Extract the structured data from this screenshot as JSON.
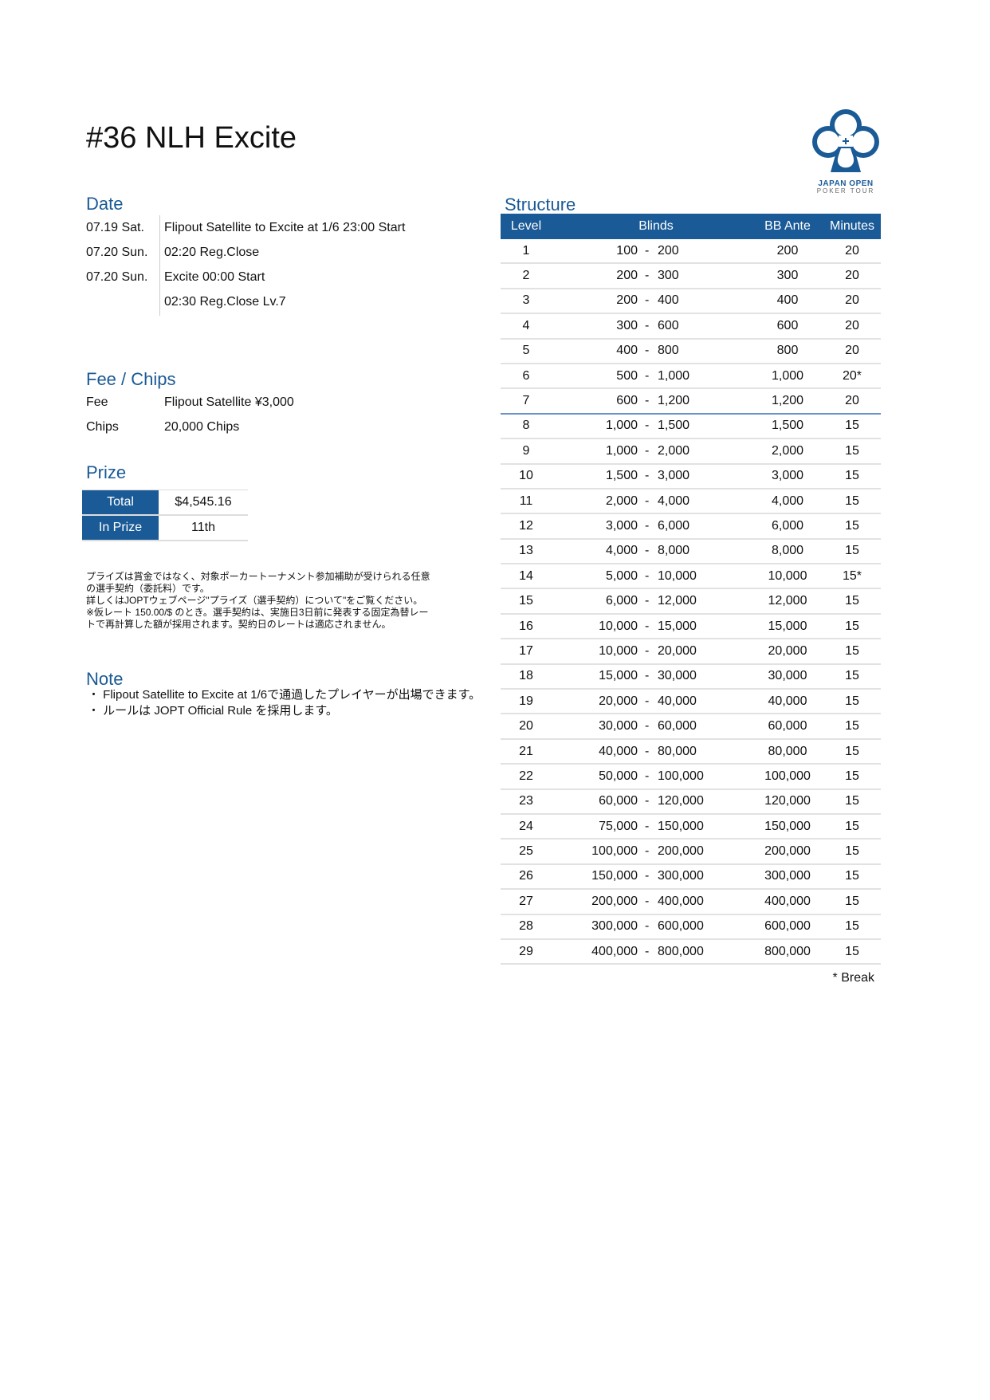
{
  "title": "#36 NLH Excite",
  "logo": {
    "line1": "JAPAN OPEN",
    "line2": "POKER TOUR",
    "color": "#1a5a96"
  },
  "date": {
    "heading": "Date",
    "rows": [
      {
        "date": "07.19 Sat.",
        "text": "Flipout Satellite to Excite at 1/6 23:00 Start"
      },
      {
        "date": "07.20 Sun.",
        "text": "02:20 Reg.Close"
      },
      {
        "date": "07.20 Sun.",
        "text": "Excite 00:00 Start"
      },
      {
        "date": "",
        "text": "02:30 Reg.Close Lv.7"
      }
    ]
  },
  "fee": {
    "heading": "Fee / Chips",
    "fee_label": "Fee",
    "fee_value": "Flipout Satellite ¥3,000",
    "chips_label": "Chips",
    "chips_value": "20,000 Chips"
  },
  "prize": {
    "heading": "Prize",
    "total_label": "Total",
    "total_value": "$4,545.16",
    "inprize_label": "In Prize",
    "inprize_value": "11th"
  },
  "disclaimer": [
    "プライズは賞金ではなく、対象ポーカートーナメント参加補助が受けられる任意",
    "の選手契約（委託料）です。",
    "詳しくはJOPTウェブページ\"プライズ（選手契約）について\"をご覧ください。",
    "※仮レート 150.00/$ のとき。選手契約は、実施日3日前に発表する固定為替レー",
    "トで再計算した額が採用されます。契約日のレートは適応されません。"
  ],
  "note": {
    "heading": "Note",
    "items": [
      "・ Flipout Satellite to Excite at 1/6で通過したプレイヤーが出場できます。",
      "・ ルールは JOPT Official Rule を採用します。"
    ]
  },
  "structure": {
    "heading": "Structure",
    "columns": {
      "level": "Level",
      "blinds": "Blinds",
      "ante": "BB Ante",
      "minutes": "Minutes"
    },
    "rows": [
      [
        "1",
        "100",
        "200",
        "200",
        "20"
      ],
      [
        "2",
        "200",
        "300",
        "300",
        "20"
      ],
      [
        "3",
        "200",
        "400",
        "400",
        "20"
      ],
      [
        "4",
        "300",
        "600",
        "600",
        "20"
      ],
      [
        "5",
        "400",
        "800",
        "800",
        "20"
      ],
      [
        "6",
        "500",
        "1,000",
        "1,000",
        "20*"
      ],
      [
        "7",
        "600",
        "1,200",
        "1,200",
        "20"
      ],
      [
        "8",
        "1,000",
        "1,500",
        "1,500",
        "15"
      ],
      [
        "9",
        "1,000",
        "2,000",
        "2,000",
        "15"
      ],
      [
        "10",
        "1,500",
        "3,000",
        "3,000",
        "15"
      ],
      [
        "11",
        "2,000",
        "4,000",
        "4,000",
        "15"
      ],
      [
        "12",
        "3,000",
        "6,000",
        "6,000",
        "15"
      ],
      [
        "13",
        "4,000",
        "8,000",
        "8,000",
        "15"
      ],
      [
        "14",
        "5,000",
        "10,000",
        "10,000",
        "15*"
      ],
      [
        "15",
        "6,000",
        "12,000",
        "12,000",
        "15"
      ],
      [
        "16",
        "10,000",
        "15,000",
        "15,000",
        "15"
      ],
      [
        "17",
        "10,000",
        "20,000",
        "20,000",
        "15"
      ],
      [
        "18",
        "15,000",
        "30,000",
        "30,000",
        "15"
      ],
      [
        "19",
        "20,000",
        "40,000",
        "40,000",
        "15"
      ],
      [
        "20",
        "30,000",
        "60,000",
        "60,000",
        "15"
      ],
      [
        "21",
        "40,000",
        "80,000",
        "80,000",
        "15"
      ],
      [
        "22",
        "50,000",
        "100,000",
        "100,000",
        "15"
      ],
      [
        "23",
        "60,000",
        "120,000",
        "120,000",
        "15"
      ],
      [
        "24",
        "75,000",
        "150,000",
        "150,000",
        "15"
      ],
      [
        "25",
        "100,000",
        "200,000",
        "200,000",
        "15"
      ],
      [
        "26",
        "150,000",
        "300,000",
        "300,000",
        "15"
      ],
      [
        "27",
        "200,000",
        "400,000",
        "400,000",
        "15"
      ],
      [
        "28",
        "300,000",
        "600,000",
        "600,000",
        "15"
      ],
      [
        "29",
        "400,000",
        "800,000",
        "800,000",
        "15"
      ]
    ],
    "separator": "-",
    "break_note": "* Break"
  }
}
